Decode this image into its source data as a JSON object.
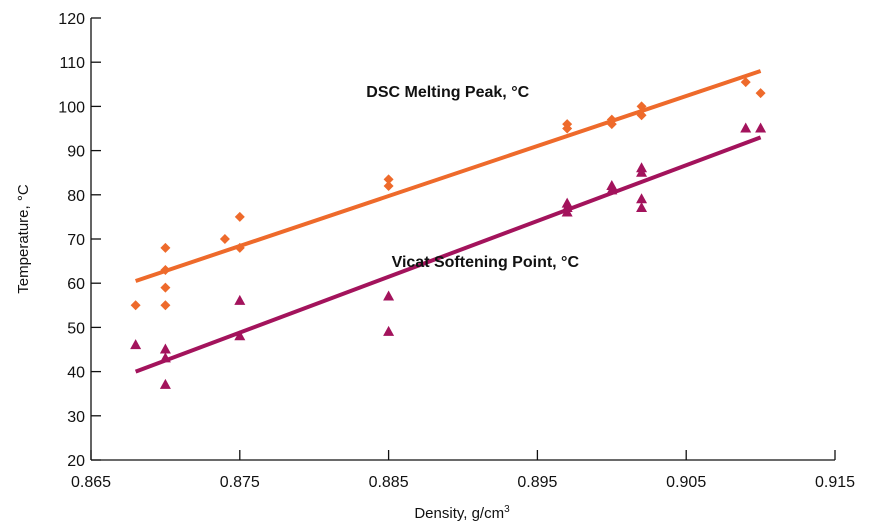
{
  "chart_data": {
    "type": "scatter",
    "title": "",
    "xlabel": "Density, g/cm",
    "xlabel_superscript": "3",
    "ylabel": "Temperature, °C",
    "xlim": [
      0.865,
      0.915
    ],
    "ylim": [
      20,
      120
    ],
    "x_ticks": [
      0.865,
      0.875,
      0.885,
      0.895,
      0.905,
      0.915
    ],
    "x_tick_labels": [
      "0.865",
      "0.875",
      "0.885",
      "0.895",
      "0.905",
      "0.915"
    ],
    "y_ticks": [
      20,
      30,
      40,
      50,
      60,
      70,
      80,
      90,
      100,
      110,
      120
    ],
    "y_tick_labels": [
      "20",
      "30",
      "40",
      "50",
      "60",
      "70",
      "80",
      "90",
      "100",
      "110",
      "120"
    ],
    "grid": false,
    "legend": "none",
    "series": [
      {
        "name": "DSC Melting Peak, °C",
        "color": "#ee6a2b",
        "marker": "diamond",
        "points": [
          {
            "x": 0.868,
            "y": 55
          },
          {
            "x": 0.87,
            "y": 68
          },
          {
            "x": 0.87,
            "y": 63
          },
          {
            "x": 0.87,
            "y": 59
          },
          {
            "x": 0.87,
            "y": 55
          },
          {
            "x": 0.874,
            "y": 70
          },
          {
            "x": 0.875,
            "y": 75
          },
          {
            "x": 0.875,
            "y": 68
          },
          {
            "x": 0.885,
            "y": 83.5
          },
          {
            "x": 0.885,
            "y": 82
          },
          {
            "x": 0.897,
            "y": 96
          },
          {
            "x": 0.897,
            "y": 95
          },
          {
            "x": 0.9,
            "y": 97
          },
          {
            "x": 0.9,
            "y": 96
          },
          {
            "x": 0.902,
            "y": 100
          },
          {
            "x": 0.902,
            "y": 98
          },
          {
            "x": 0.909,
            "y": 105.5
          },
          {
            "x": 0.91,
            "y": 103
          }
        ],
        "trendline": {
          "x": [
            0.868,
            0.91
          ],
          "y": [
            60.5,
            108
          ]
        }
      },
      {
        "name": "Vicat Softening Point, °C",
        "color": "#a3135c",
        "marker": "triangle",
        "points": [
          {
            "x": 0.868,
            "y": 46
          },
          {
            "x": 0.87,
            "y": 45
          },
          {
            "x": 0.87,
            "y": 43
          },
          {
            "x": 0.87,
            "y": 37
          },
          {
            "x": 0.875,
            "y": 56
          },
          {
            "x": 0.875,
            "y": 48
          },
          {
            "x": 0.885,
            "y": 57
          },
          {
            "x": 0.885,
            "y": 49
          },
          {
            "x": 0.897,
            "y": 78
          },
          {
            "x": 0.897,
            "y": 77
          },
          {
            "x": 0.897,
            "y": 76
          },
          {
            "x": 0.9,
            "y": 82
          },
          {
            "x": 0.9,
            "y": 81
          },
          {
            "x": 0.902,
            "y": 86
          },
          {
            "x": 0.902,
            "y": 85
          },
          {
            "x": 0.902,
            "y": 79
          },
          {
            "x": 0.902,
            "y": 77
          },
          {
            "x": 0.909,
            "y": 95
          },
          {
            "x": 0.91,
            "y": 95
          }
        ],
        "trendline": {
          "x": [
            0.868,
            0.91
          ],
          "y": [
            40,
            93
          ]
        }
      }
    ],
    "annotations": [
      {
        "text": "DSC Melting Peak, °C",
        "x": 0.8835,
        "y": 103.5
      },
      {
        "text": "Vicat Softening Point, °C",
        "x": 0.8852,
        "y": 65
      }
    ]
  }
}
